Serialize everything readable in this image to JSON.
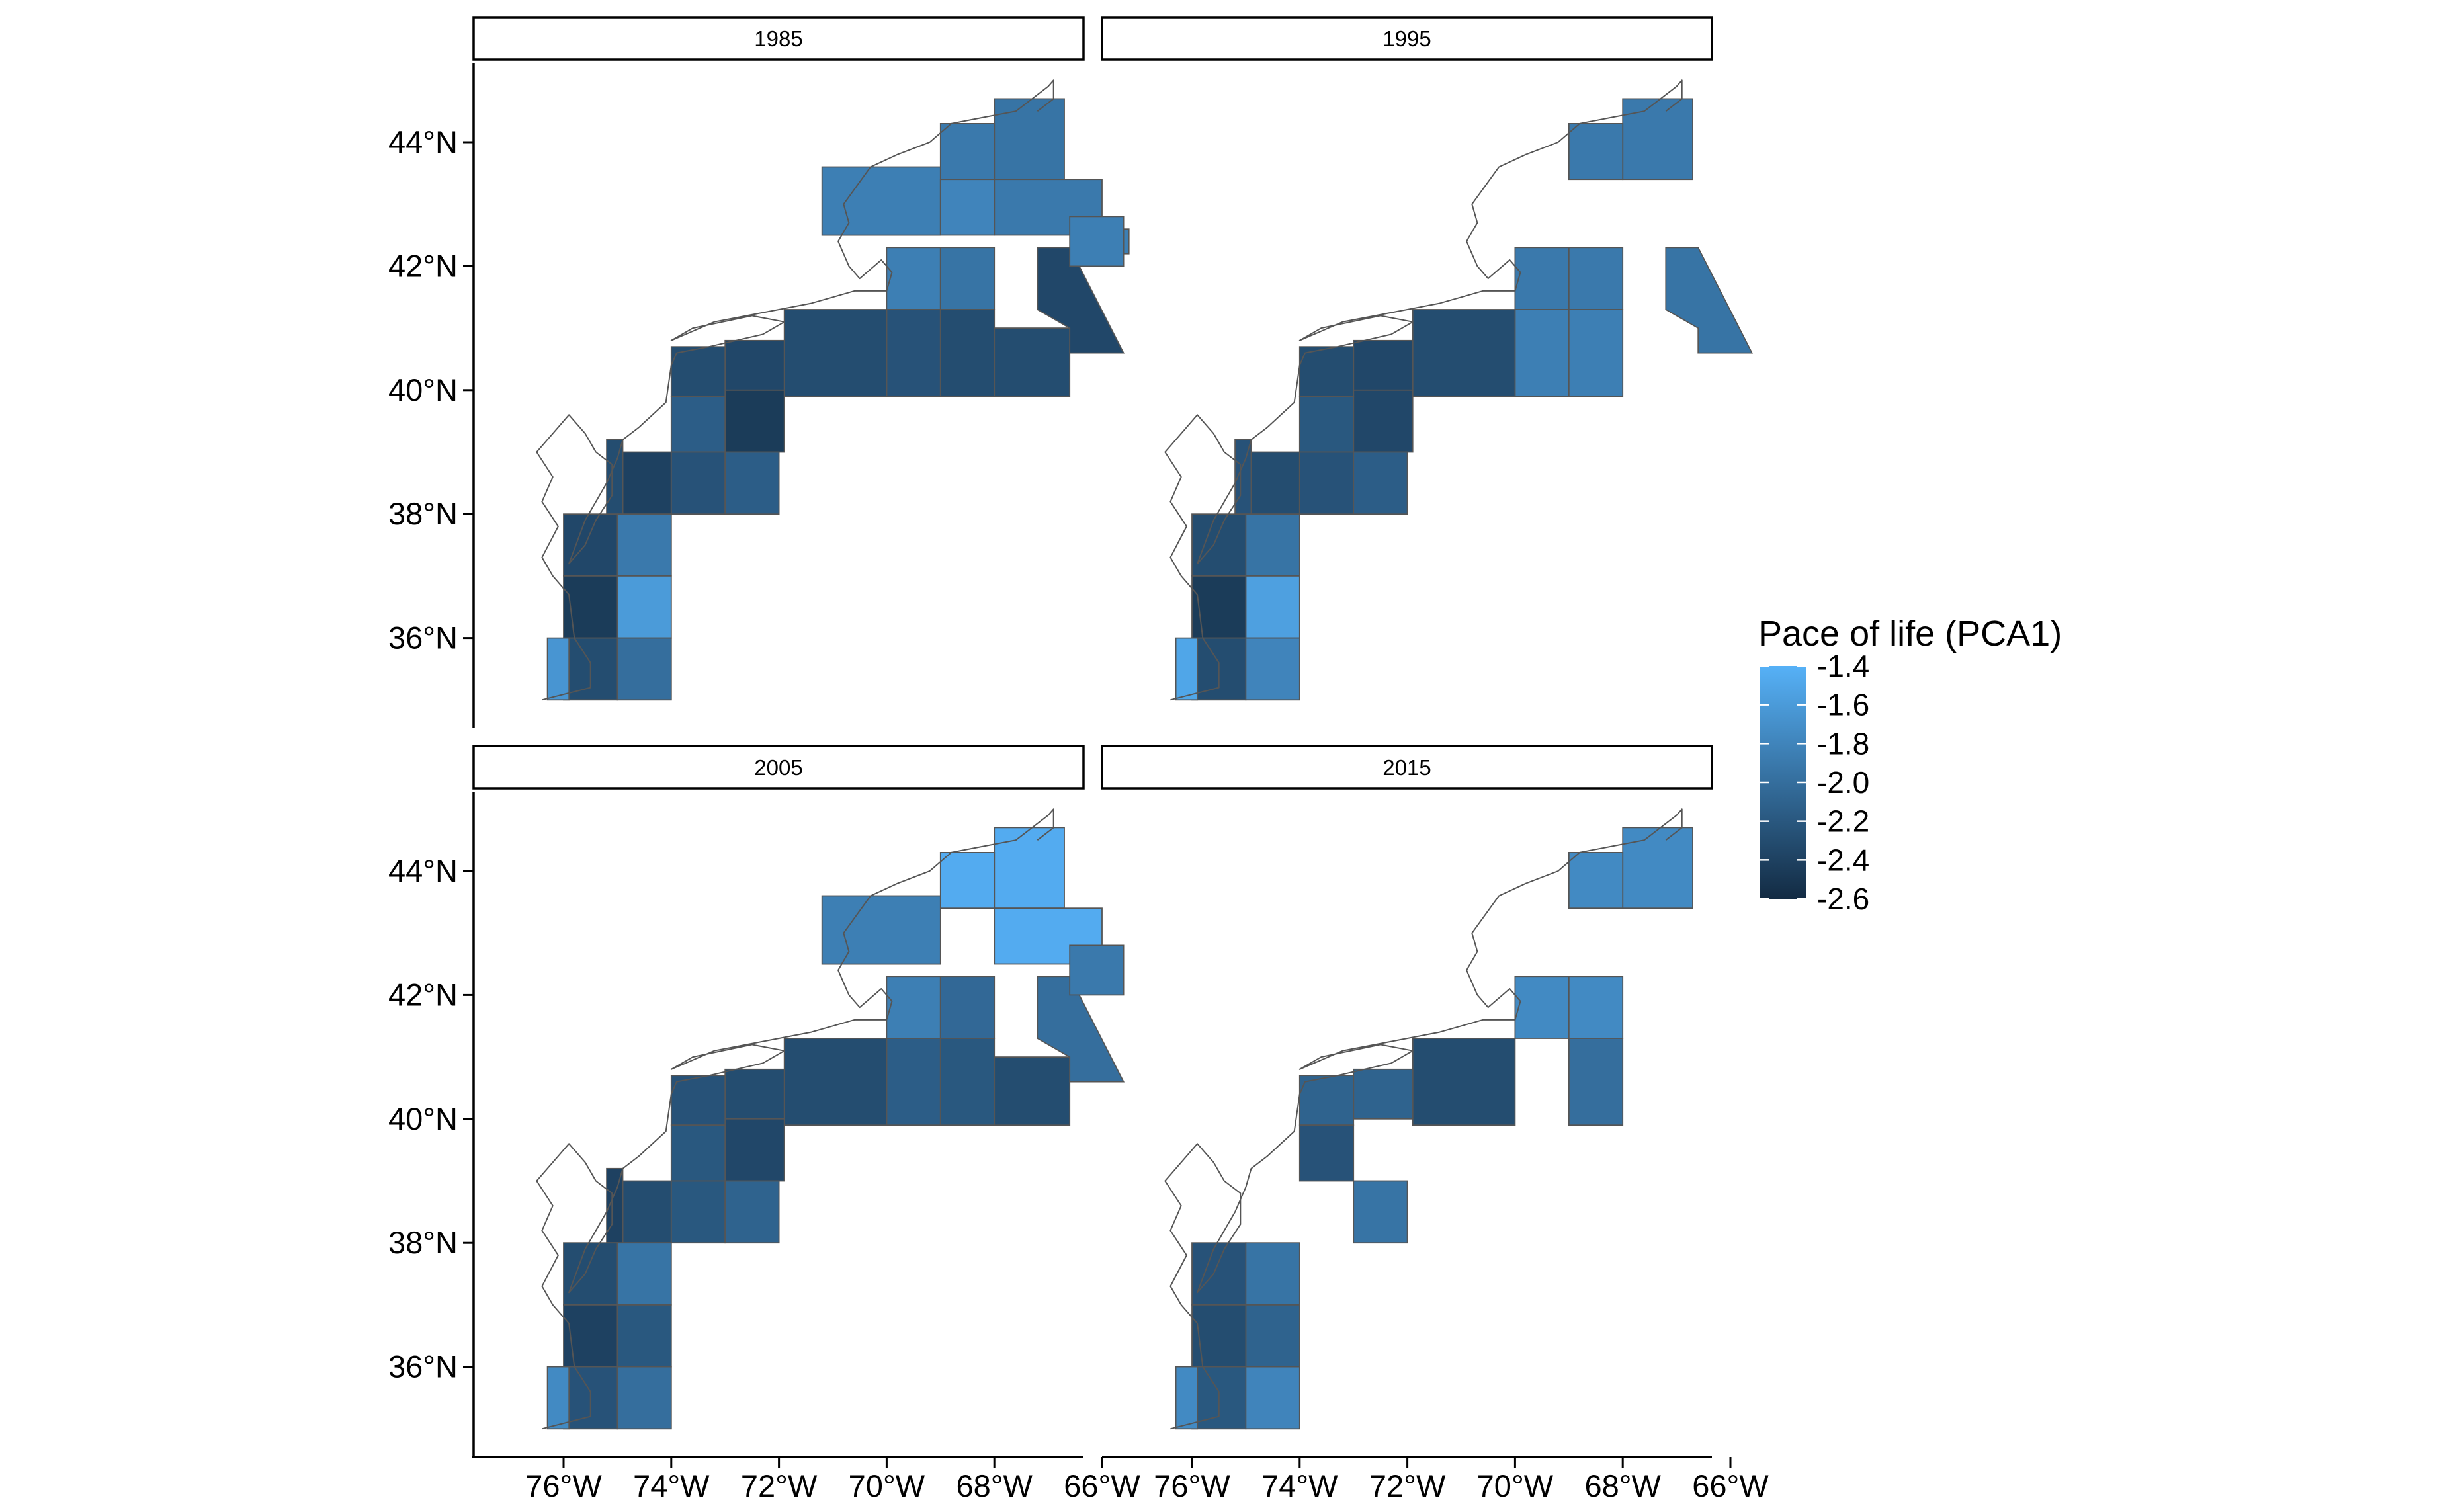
{
  "facets": [
    {
      "label": "1985",
      "values": {
        "2_0": -1.95,
        "1_0": -1.9,
        "1_1": -1.9,
        "0_1": -1.85,
        "0_2": -1.8,
        "1_2": -1.85,
        "2_1": -1.85,
        "3_1": -1.95,
        "2_2": -2.25,
        "3_2": -2.3,
        "4_2": -2.3,
        "4_3": -2.3,
        "3_3": -2.35,
        "4_4": -2.45,
        "5_3": -2.3,
        "6_3": -2.15,
        "7_3": -2.4,
        "7_4": -2.25,
        "8_4": -2.15,
        "8_5": -2.3,
        "9_4": -2.35,
        "9_5": -1.9,
        "10_5": -1.6,
        "10_6": -2.45,
        "11_6": -2.3,
        "11_7": -2.0,
        "12_7": -1.65
      },
      "trapezoid_value": -2.35,
      "east_box_value": -1.85
    },
    {
      "label": "1995",
      "values": {
        "2_0": -1.9,
        "1_0": -1.9,
        "2_1": -1.9,
        "3_1": -1.9,
        "2_2": -1.85,
        "3_2": -1.85,
        "4_3": -2.3,
        "3_3": -2.35,
        "4_4": -2.35,
        "5_3": -2.3,
        "6_3": -2.2,
        "7_3": -2.3,
        "7_4": -2.25,
        "8_4": -2.15,
        "8_5": -2.25,
        "9_4": -2.3,
        "9_5": -1.95,
        "10_5": -1.55,
        "10_6": -2.45,
        "11_6": -2.3,
        "11_7": -1.8,
        "12_7": -1.5
      },
      "trapezoid_value": -1.95,
      "east_box_value": null
    },
    {
      "label": "2005",
      "values": {
        "2_0": -1.45,
        "1_0": -1.45,
        "1_1": -1.45,
        "0_1": -1.85,
        "2_1": -1.85,
        "3_1": -2.05,
        "2_2": -2.15,
        "3_2": -2.2,
        "4_2": -2.3,
        "4_3": -2.3,
        "3_3": -2.3,
        "4_4": -2.35,
        "5_3": -2.25,
        "6_3": -2.2,
        "7_3": -2.3,
        "7_4": -2.2,
        "8_4": -2.1,
        "8_5": -2.4,
        "9_4": -2.3,
        "9_5": -1.95,
        "10_5": -2.2,
        "10_6": -2.4,
        "11_6": -2.25,
        "11_7": -2.0,
        "12_7": -1.75
      },
      "trapezoid_value": -2.0,
      "east_box_value": -1.9
    },
    {
      "label": "2015",
      "values": {
        "2_0": -1.75,
        "1_0": -1.75,
        "2_1": -1.75,
        "3_1": -1.75,
        "3_2": -2.0,
        "4_3": -2.3,
        "3_3": -2.1,
        "5_3": -2.1,
        "6_3": -2.25,
        "8_4": -1.95,
        "9_4": -2.25,
        "9_5": -1.95,
        "10_5": -2.1,
        "10_6": -2.3,
        "11_6": -2.2,
        "11_7": -1.8,
        "12_7": -1.75
      },
      "trapezoid_value": null,
      "east_box_value": null
    }
  ],
  "axes": {
    "y_ticks": [
      {
        "label": "44°N",
        "value": 44
      },
      {
        "label": "42°N",
        "value": 42
      },
      {
        "label": "40°N",
        "value": 40
      },
      {
        "label": "38°N",
        "value": 38
      },
      {
        "label": "36°N",
        "value": 36
      }
    ],
    "x_ticks": [
      {
        "label": "76°W",
        "value": -76
      },
      {
        "label": "74°W",
        "value": -74
      },
      {
        "label": "72°W",
        "value": -72
      },
      {
        "label": "70°W",
        "value": -70
      },
      {
        "label": "68°W",
        "value": -68
      },
      {
        "label": "66°W",
        "value": -66
      }
    ]
  },
  "legend": {
    "title": "Pace of life (PCA1)",
    "labels": [
      "-1.4",
      "-1.6",
      "-1.8",
      "-2.0",
      "-2.2",
      "-2.4",
      "-2.6"
    ],
    "values": [
      -1.4,
      -1.6,
      -1.8,
      -2.0,
      -2.2,
      -2.4,
      -2.6
    ],
    "low_color": "#132B43",
    "high_color": "#56B1F7"
  },
  "colors": {
    "outline": "#555555"
  }
}
